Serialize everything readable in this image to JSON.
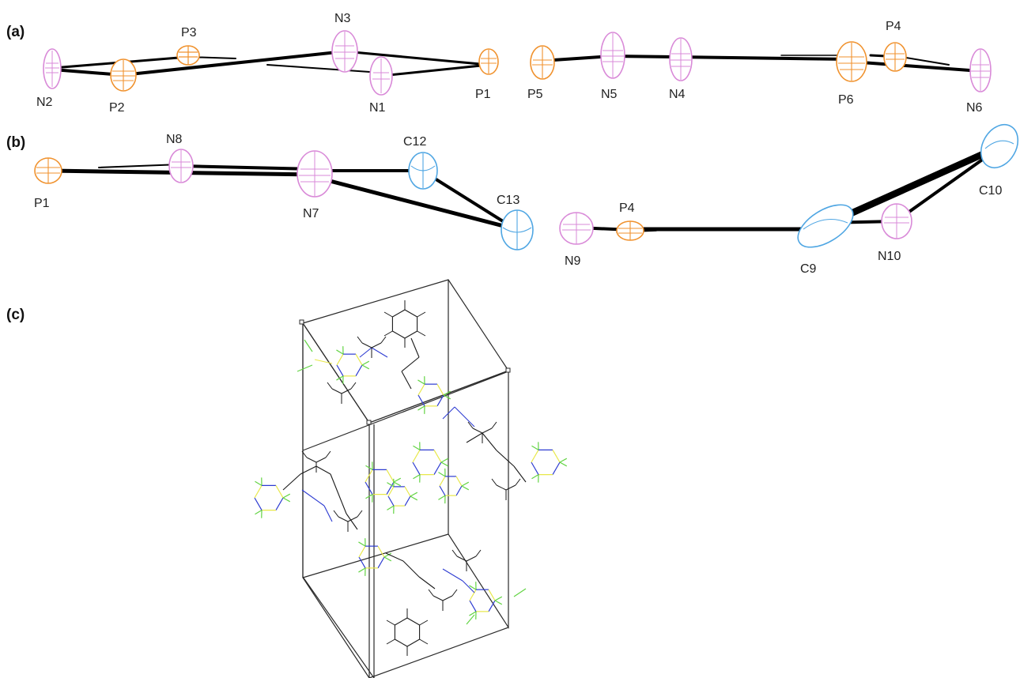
{
  "figure": {
    "panels": [
      {
        "id": "a",
        "label": "(a)"
      },
      {
        "id": "b",
        "label": "(b)"
      },
      {
        "id": "c",
        "label": "(c)"
      }
    ],
    "colors": {
      "P": "#f0922e",
      "N": "#d98ad8",
      "C": "#4fa6e3",
      "S": "#e8e84a",
      "F": "#63d444",
      "N_wire": "#2d3bd1",
      "C_wire": "#1a1a1a",
      "bond": "#000000",
      "cell": "#2a2a2a"
    },
    "panel_a": {
      "atoms": [
        {
          "label": "N2",
          "element": "N"
        },
        {
          "label": "P2",
          "element": "P"
        },
        {
          "label": "P3",
          "element": "P"
        },
        {
          "label": "N3",
          "element": "N"
        },
        {
          "label": "N1",
          "element": "N"
        },
        {
          "label": "P1",
          "element": "P"
        },
        {
          "label": "P5",
          "element": "P"
        },
        {
          "label": "N5",
          "element": "N"
        },
        {
          "label": "N4",
          "element": "N"
        },
        {
          "label": "P6",
          "element": "P"
        },
        {
          "label": "P4",
          "element": "P"
        },
        {
          "label": "N6",
          "element": "N"
        }
      ]
    },
    "panel_b": {
      "atoms": [
        {
          "label": "P1",
          "element": "P"
        },
        {
          "label": "N8",
          "element": "N"
        },
        {
          "label": "N7",
          "element": "N"
        },
        {
          "label": "C12",
          "element": "C"
        },
        {
          "label": "C13",
          "element": "C"
        },
        {
          "label": "N9",
          "element": "N"
        },
        {
          "label": "P4",
          "element": "P"
        },
        {
          "label": "C9",
          "element": "C"
        },
        {
          "label": "N10",
          "element": "N"
        },
        {
          "label": "C10",
          "element": "C"
        }
      ]
    },
    "panel_c": {
      "description_elements": [
        "unit-cell",
        "packing-molecules"
      ]
    }
  }
}
